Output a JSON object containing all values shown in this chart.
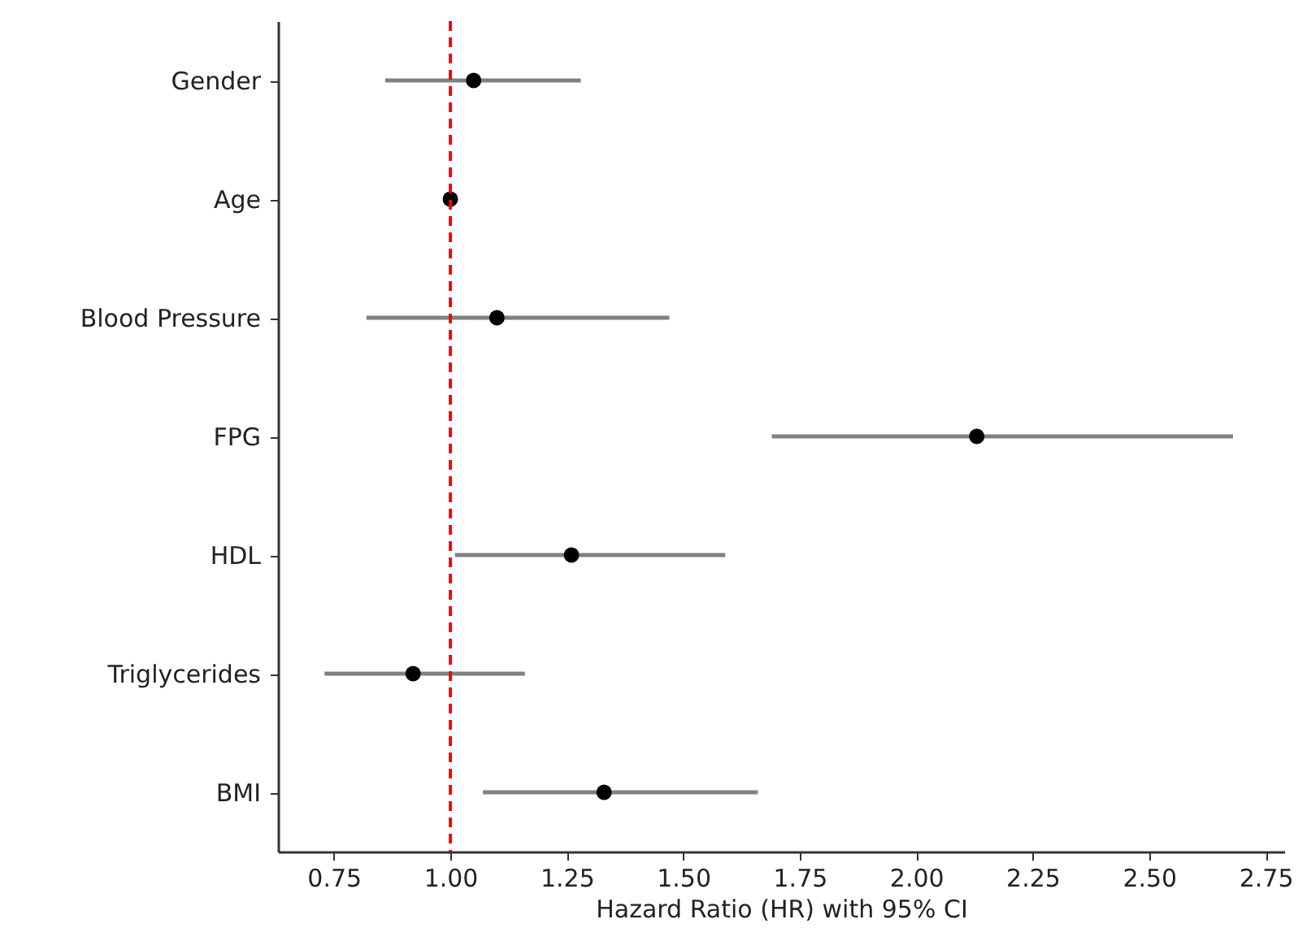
{
  "chart_data": {
    "type": "scatter",
    "orientation": "horizontal",
    "xlabel": "Hazard Ratio (HR) with 95% CI",
    "categories": [
      "Gender",
      "Age",
      "Blood Pressure",
      "FPG",
      "HDL",
      "Triglycerides",
      "BMI"
    ],
    "color": "#000000",
    "values": [
      1.05,
      1.0,
      1.1,
      2.13,
      1.26,
      0.92,
      1.33
    ],
    "errors": [
      [
        0.86,
        1.28
      ],
      null,
      [
        0.82,
        1.47
      ],
      [
        1.69,
        2.68
      ],
      [
        1.01,
        1.59
      ],
      [
        0.73,
        1.16
      ],
      [
        1.07,
        1.66
      ]
    ],
    "marker": "circle",
    "xlim": [
      0.63,
      2.79
    ],
    "xticks": [
      {
        "value": 0.75,
        "label": "0.75"
      },
      {
        "value": 1.0,
        "label": "1.00"
      },
      {
        "value": 1.25,
        "label": "1.25"
      },
      {
        "value": 1.5,
        "label": "1.50"
      },
      {
        "value": 1.75,
        "label": "1.75"
      },
      {
        "value": 2.0,
        "label": "2.00"
      },
      {
        "value": 2.25,
        "label": "2.25"
      },
      {
        "value": 2.5,
        "label": "2.50"
      },
      {
        "value": 2.75,
        "label": "2.75"
      }
    ],
    "ref_lines": [
      {
        "axis": "x",
        "value": 1.0,
        "color": "#ff0000",
        "line_style": "dashed"
      }
    ],
    "grid": false
  }
}
